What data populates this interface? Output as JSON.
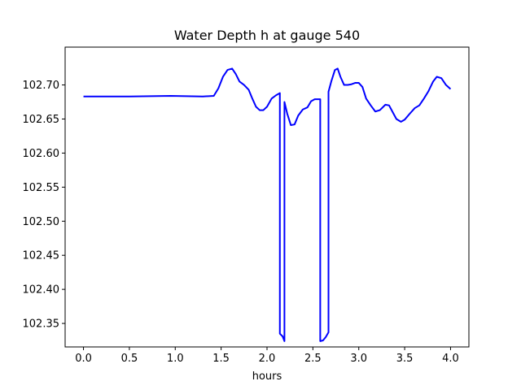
{
  "chart_data": {
    "type": "line",
    "title": "Water Depth h at gauge 540",
    "xlabel": "hours",
    "ylabel": "",
    "xlim": [
      -0.2,
      4.2
    ],
    "ylim": [
      102.3155,
      102.7555
    ],
    "x_ticks": [
      0.0,
      0.5,
      1.0,
      1.5,
      2.0,
      2.5,
      3.0,
      3.5,
      4.0
    ],
    "x_tick_labels": [
      "0.0",
      "0.5",
      "1.0",
      "1.5",
      "2.0",
      "2.5",
      "3.0",
      "3.5",
      "4.0"
    ],
    "y_ticks": [
      102.35,
      102.4,
      102.45,
      102.5,
      102.55,
      102.6,
      102.65,
      102.7
    ],
    "y_tick_labels": [
      "102.35",
      "102.40",
      "102.45",
      "102.50",
      "102.55",
      "102.60",
      "102.65",
      "102.70"
    ],
    "grid": false,
    "color": "#0000ff",
    "series": [
      {
        "x": [
          0.0,
          0.5,
          0.95,
          1.3,
          1.42,
          1.47,
          1.52,
          1.57,
          1.62,
          1.66,
          1.7,
          1.75,
          1.8,
          1.84,
          1.88,
          1.92,
          1.96,
          2.0,
          2.05,
          2.1,
          2.14,
          2.14,
          2.17,
          2.19,
          2.19,
          2.22,
          2.26,
          2.3,
          2.34,
          2.39,
          2.44,
          2.48,
          2.52,
          2.56,
          2.58,
          2.58,
          2.61,
          2.64,
          2.67,
          2.67,
          2.7,
          2.74,
          2.77,
          2.8,
          2.84,
          2.88,
          2.92,
          2.96,
          3.0,
          3.04,
          3.08,
          3.13,
          3.18,
          3.23,
          3.29,
          3.33,
          3.37,
          3.41,
          3.46,
          3.5,
          3.55,
          3.61,
          3.66,
          3.71,
          3.76,
          3.81,
          3.85,
          3.9,
          3.95,
          4.0
        ],
        "y": [
          102.683,
          102.683,
          102.684,
          102.683,
          102.684,
          102.695,
          102.712,
          102.722,
          102.724,
          102.716,
          102.705,
          102.7,
          102.693,
          102.68,
          102.668,
          102.663,
          102.663,
          102.668,
          102.68,
          102.685,
          102.688,
          102.335,
          102.331,
          102.324,
          102.675,
          102.658,
          102.641,
          102.642,
          102.655,
          102.664,
          102.667,
          102.676,
          102.679,
          102.679,
          102.679,
          102.324,
          102.325,
          102.33,
          102.337,
          102.69,
          102.705,
          102.722,
          102.724,
          102.712,
          102.7,
          102.7,
          102.701,
          102.703,
          102.703,
          102.697,
          102.68,
          102.67,
          102.661,
          102.663,
          102.671,
          102.67,
          102.66,
          102.65,
          102.646,
          102.649,
          102.657,
          102.666,
          102.67,
          102.68,
          102.691,
          102.705,
          102.712,
          102.71,
          102.7,
          102.694
        ]
      }
    ]
  }
}
